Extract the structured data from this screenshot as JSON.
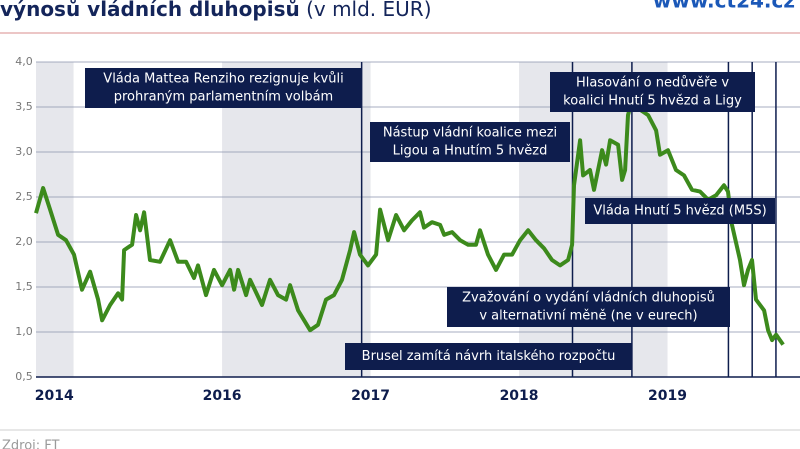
{
  "header": {
    "title": "výnosů vládních dluhopisů",
    "title_unit": "(v mld. EUR)",
    "site": "www.ct24.cz"
  },
  "chart_data": {
    "type": "line",
    "x": [
      2014.747,
      2014.795,
      2014.842,
      2014.896,
      2014.949,
      2015.003,
      2015.057,
      2015.111,
      2015.165,
      2015.192,
      2015.246,
      2015.3,
      2015.327,
      2015.34,
      2015.394,
      2015.421,
      2015.448,
      2015.475,
      2015.515,
      2015.582,
      2015.65,
      2015.704,
      2015.758,
      2015.811,
      2015.838,
      2015.892,
      2015.946,
      2016,
      2016.054,
      2016.081,
      2016.108,
      2016.162,
      2016.189,
      2016.269,
      2016.323,
      2016.377,
      2016.431,
      2016.458,
      2016.512,
      2016.593,
      2016.646,
      2016.7,
      2016.754,
      2016.808,
      2016.862,
      2016.889,
      2016.929,
      2016.983,
      2017.037,
      2017.064,
      2017.118,
      2017.172,
      2017.226,
      2017.279,
      2017.333,
      2017.36,
      2017.414,
      2017.468,
      2017.495,
      2017.549,
      2017.603,
      2017.657,
      2017.71,
      2017.737,
      2017.791,
      2017.845,
      2017.899,
      2017.953,
      2018.007,
      2018.061,
      2018.114,
      2018.168,
      2018.222,
      2018.276,
      2018.33,
      2018.357,
      2018.37,
      2018.411,
      2018.431,
      2018.478,
      2018.505,
      2018.559,
      2018.586,
      2018.613,
      2018.667,
      2018.694,
      2018.714,
      2018.734,
      2018.761,
      2018.815,
      2018.869,
      2018.923,
      2018.949,
      2019.003,
      2019.057,
      2019.111,
      2019.165,
      2019.219,
      2019.273,
      2019.327,
      2019.38,
      2019.407,
      2019.434,
      2019.488,
      2019.515,
      2019.542,
      2019.569,
      2019.596,
      2019.65,
      2019.677,
      2019.704,
      2019.731,
      2019.778
    ],
    "series": [
      {
        "color": "#3c8a1c",
        "values": [
          2.32,
          2.6,
          2.36,
          2.08,
          2.02,
          1.86,
          1.47,
          1.67,
          1.36,
          1.13,
          1.3,
          1.43,
          1.36,
          1.91,
          1.97,
          2.3,
          2.13,
          2.33,
          1.8,
          1.78,
          2.02,
          1.78,
          1.78,
          1.6,
          1.74,
          1.41,
          1.69,
          1.52,
          1.69,
          1.47,
          1.69,
          1.41,
          1.58,
          1.3,
          1.58,
          1.41,
          1.36,
          1.52,
          1.24,
          1.02,
          1.08,
          1.36,
          1.41,
          1.58,
          1.91,
          2.11,
          1.86,
          1.74,
          1.86,
          2.36,
          2.02,
          2.3,
          2.13,
          2.24,
          2.33,
          2.16,
          2.22,
          2.19,
          2.08,
          2.11,
          2.02,
          1.97,
          1.97,
          2.13,
          1.86,
          1.69,
          1.86,
          1.86,
          2.02,
          2.13,
          2.02,
          1.93,
          1.8,
          1.74,
          1.8,
          1.97,
          2.63,
          3.13,
          2.74,
          2.8,
          2.58,
          3.02,
          2.86,
          3.13,
          3.08,
          2.69,
          2.8,
          3.41,
          3.58,
          3.47,
          3.41,
          3.24,
          2.97,
          3.02,
          2.8,
          2.74,
          2.58,
          2.56,
          2.47,
          2.52,
          2.63,
          2.56,
          2.19,
          1.8,
          1.52,
          1.69,
          1.8,
          1.36,
          1.24,
          1.02,
          0.91,
          0.97,
          0.86
        ]
      }
    ],
    "xlim": [
      2014.747,
      2019.892
    ],
    "xticks": [
      {
        "value": 2014.87,
        "label": "2014"
      },
      2016,
      2017,
      2018,
      2019
    ],
    "ylim": [
      0.5,
      4.0
    ],
    "yticks": [
      {
        "value": 0.5,
        "label": "0,5"
      },
      {
        "value": 1.0,
        "label": "1,0"
      },
      {
        "value": 1.5,
        "label": "1,5"
      },
      {
        "value": 2.0,
        "label": "2,0"
      },
      {
        "value": 2.5,
        "label": "2,5"
      },
      {
        "value": 3.0,
        "label": "3,0"
      },
      {
        "value": 3.5,
        "label": "3,5"
      },
      {
        "value": 4.0,
        "label": "4,0"
      }
    ],
    "grid": true,
    "bands": [
      [
        2014,
        2015
      ],
      [
        2016,
        2017
      ],
      [
        2018,
        2019
      ]
    ],
    "events": [
      {
        "x": 2016.94,
        "label": [
          "Vláda Mattea Renziho rezignuje kvůli",
          "prohraným parlamentním volbám"
        ]
      },
      {
        "x": 2018.36,
        "label": [
          "Nástup vládní koalice mezi",
          "Ligou a Hnutím 5 hvězd"
        ]
      },
      {
        "x": 2018.76,
        "label": [
          "Brusel zamítá návrh italského rozpočtu"
        ]
      },
      {
        "x": 2019.41,
        "label": [
          "Zvažování o vydání vládních dluhopisů",
          "v alternativní měně (ne v eurech)"
        ]
      },
      {
        "x": 2019.57,
        "label": [
          "Hlasování o nedůvěře v",
          "koalici Hnutí 5 hvězd a Ligy"
        ]
      },
      {
        "x": 2019.73,
        "label": [
          "Vláda Hnutí 5 hvězd (M5S)"
        ]
      }
    ]
  },
  "source": "Zdroj: FT"
}
